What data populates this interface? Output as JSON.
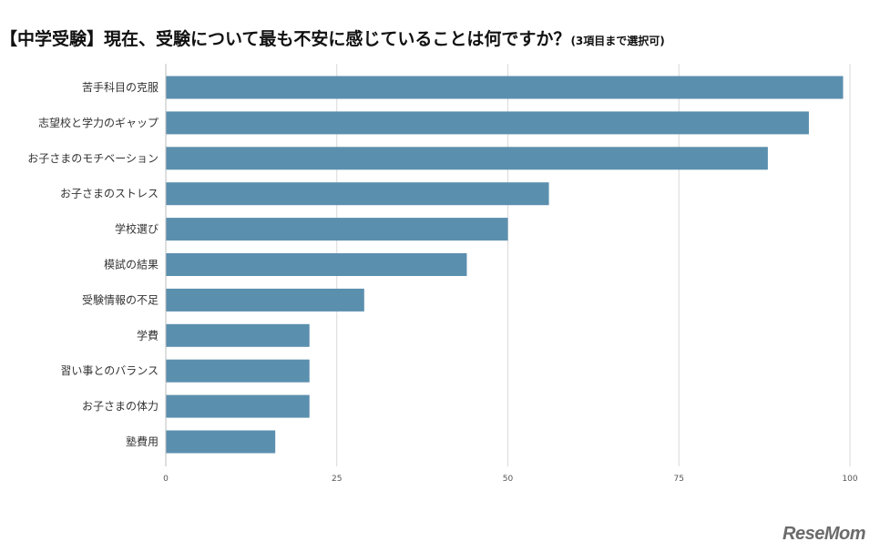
{
  "title": "【中学受験】現在、受験について最も不安に感じていることは何ですか？",
  "subtitle": "(3項目まで選択可)",
  "watermark": "ReseMom",
  "chart_data": {
    "type": "bar",
    "orientation": "horizontal",
    "categories": [
      "苦手科目の克服",
      "志望校と学力のギャップ",
      "お子さまのモチベーション",
      "お子さまのストレス",
      "学校選び",
      "模試の結果",
      "受験情報の不足",
      "学費",
      "習い事とのバランス",
      "お子さまの体力",
      "塾費用"
    ],
    "values": [
      99,
      94,
      88,
      56,
      50,
      44,
      29,
      21,
      21,
      21,
      16
    ],
    "xlim": [
      0,
      100
    ],
    "xticks": [
      0,
      25,
      50,
      75,
      100
    ],
    "bar_color": "#5b8fae",
    "grid": true
  }
}
